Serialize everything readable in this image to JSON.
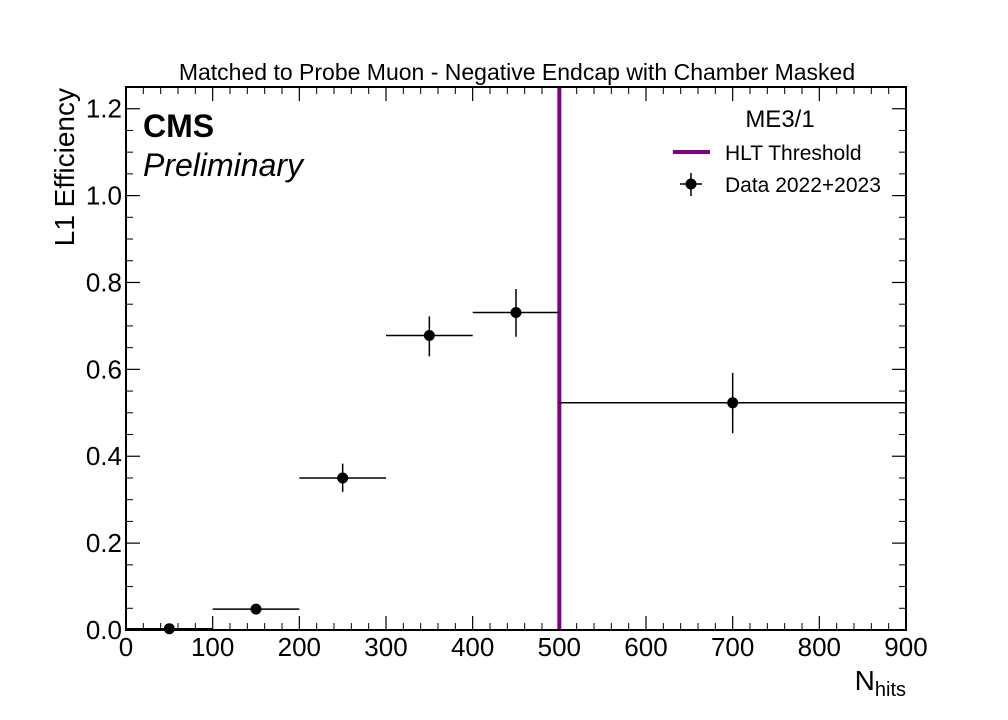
{
  "chart_data": {
    "type": "scatter",
    "title": "Matched to Probe Muon - Negative Endcap with Chamber Masked",
    "experiment_label": "CMS",
    "status_label": "Preliminary",
    "ylabel": "L1 Efficiency",
    "xlabel_main": "N",
    "xlabel_sub": "hits",
    "xlim": [
      0,
      900
    ],
    "ylim": [
      0,
      1.25
    ],
    "x_ticks": [
      0,
      100,
      200,
      300,
      400,
      500,
      600,
      700,
      800,
      900
    ],
    "x_tick_labels": [
      "0",
      "100",
      "200",
      "300",
      "400",
      "500",
      "600",
      "700",
      "800",
      "900"
    ],
    "y_ticks": [
      0,
      0.2,
      0.4,
      0.6,
      0.8,
      1.0,
      1.2
    ],
    "y_tick_labels": [
      "0.0",
      "0.2",
      "0.4",
      "0.6",
      "0.8",
      "1.0",
      "1.2"
    ],
    "legend": {
      "title": "ME3/1",
      "position": "top-right",
      "threshold_label": "HLT Threshold",
      "data_label": "Data 2022+2023"
    },
    "threshold": {
      "x": 500,
      "color": "#800080"
    },
    "series": [
      {
        "name": "Data 2022+2023",
        "color": "#000000",
        "points": [
          {
            "x": 50,
            "xlo": 0,
            "xhi": 100,
            "y": 0.003,
            "ylo": 0.0,
            "yhi": 0.008
          },
          {
            "x": 150,
            "xlo": 100,
            "xhi": 200,
            "y": 0.048,
            "ylo": 0.04,
            "yhi": 0.057
          },
          {
            "x": 250,
            "xlo": 200,
            "xhi": 300,
            "y": 0.35,
            "ylo": 0.318,
            "yhi": 0.383
          },
          {
            "x": 350,
            "xlo": 300,
            "xhi": 400,
            "y": 0.678,
            "ylo": 0.63,
            "yhi": 0.722
          },
          {
            "x": 450,
            "xlo": 400,
            "xhi": 500,
            "y": 0.731,
            "ylo": 0.675,
            "yhi": 0.785
          },
          {
            "x": 700,
            "xlo": 500,
            "xhi": 900,
            "y": 0.523,
            "ylo": 0.453,
            "yhi": 0.592
          }
        ]
      }
    ]
  }
}
